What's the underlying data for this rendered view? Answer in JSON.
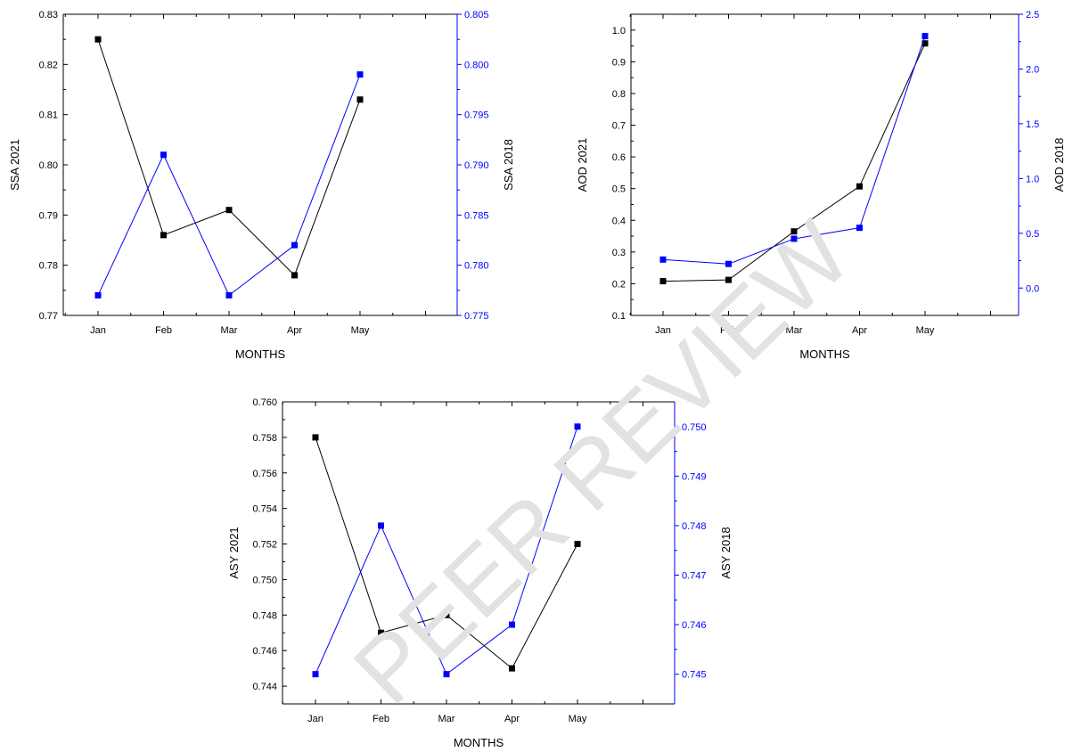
{
  "watermark": "PEER REVIEW",
  "colors": {
    "series_2021": "#000000",
    "series_2018": "#0000ff",
    "watermark": "#e2e2e2"
  },
  "chart_data": [
    {
      "type": "line",
      "categories": [
        "Jan",
        "Feb",
        "Mar",
        "Apr",
        "May"
      ],
      "xlabel": "MONTHS",
      "ylabel": "SSA 2021",
      "y2label": "SSA 2018",
      "ylim": [
        0.77,
        0.83
      ],
      "y2lim": [
        0.775,
        0.805
      ],
      "yticks": [
        "0.77",
        "0.78",
        "0.79",
        "0.80",
        "0.81",
        "0.82",
        "0.83"
      ],
      "y2ticks": [
        "0.775",
        "0.780",
        "0.785",
        "0.790",
        "0.795",
        "0.800",
        "0.805"
      ],
      "series": [
        {
          "axis": "left",
          "color": "#000000",
          "values": [
            0.825,
            0.786,
            0.791,
            0.778,
            0.813
          ]
        },
        {
          "axis": "right",
          "color": "#0000ff",
          "values": [
            0.777,
            0.791,
            0.777,
            0.782,
            0.799
          ]
        }
      ]
    },
    {
      "type": "line",
      "categories": [
        "Jan",
        "Feb",
        "Mar",
        "Apr",
        "May"
      ],
      "xlabel": "MONTHS",
      "ylabel": "AOD 2021",
      "y2label": "AOD 2018",
      "ylim": [
        0.1,
        1.05
      ],
      "y2lim": [
        -0.25,
        2.5
      ],
      "yticks": [
        "0.1",
        "0.2",
        "0.3",
        "0.4",
        "0.5",
        "0.6",
        "0.7",
        "0.8",
        "0.9",
        "1.0"
      ],
      "y2ticks": [
        "0.0",
        "0.5",
        "1.0",
        "1.5",
        "2.0",
        "2.5"
      ],
      "series": [
        {
          "axis": "left",
          "color": "#000000",
          "values": [
            0.208,
            0.212,
            0.365,
            0.507,
            0.958
          ]
        },
        {
          "axis": "right",
          "color": "#0000ff",
          "values": [
            0.26,
            0.22,
            0.45,
            0.55,
            2.3
          ]
        }
      ]
    },
    {
      "type": "line",
      "categories": [
        "Jan",
        "Feb",
        "Mar",
        "Apr",
        "May"
      ],
      "xlabel": "MONTHS",
      "ylabel": "ASY 2021",
      "y2label": "ASY 2018",
      "ylim": [
        0.743,
        0.76
      ],
      "y2lim": [
        0.7444,
        0.7505
      ],
      "yticks": [
        "0.744",
        "0.746",
        "0.748",
        "0.750",
        "0.752",
        "0.754",
        "0.756",
        "0.758",
        "0.760"
      ],
      "y2ticks": [
        "0.745",
        "0.746",
        "0.747",
        "0.748",
        "0.749",
        "0.750"
      ],
      "series": [
        {
          "axis": "left",
          "color": "#000000",
          "values": [
            0.758,
            0.747,
            0.748,
            0.745,
            0.752
          ]
        },
        {
          "axis": "right",
          "color": "#0000ff",
          "values": [
            0.745,
            0.748,
            0.745,
            0.746,
            0.75
          ]
        }
      ]
    }
  ]
}
